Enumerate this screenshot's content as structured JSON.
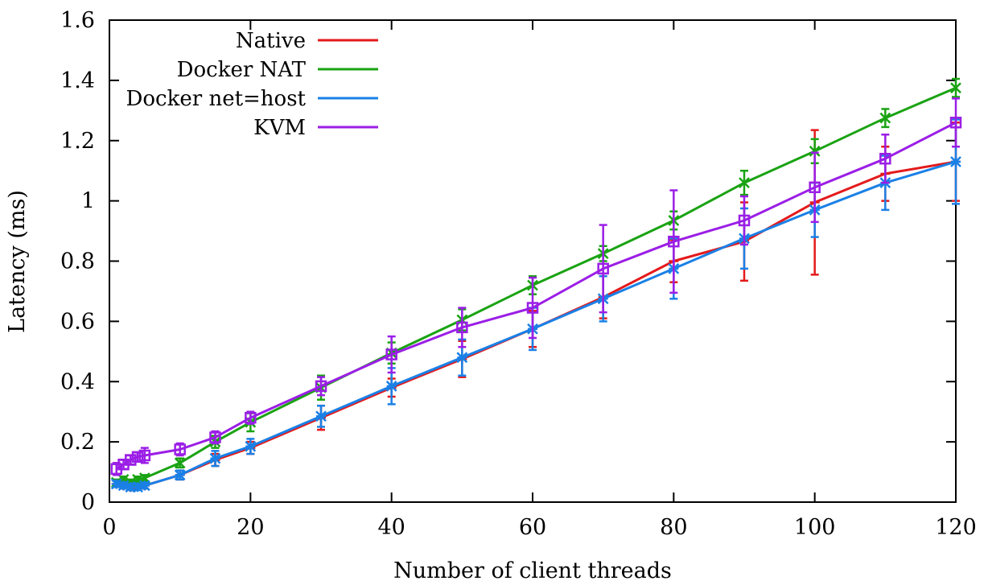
{
  "chart_data": {
    "type": "line",
    "title": "",
    "xlabel": "Number of client threads",
    "ylabel": "Latency (ms)",
    "xlim": [
      0,
      120
    ],
    "ylim": [
      0,
      1.6
    ],
    "xticks": [
      0,
      20,
      40,
      60,
      80,
      100,
      120
    ],
    "yticks": [
      0,
      0.2,
      0.4,
      0.6,
      0.8,
      1,
      1.2,
      1.4,
      1.6
    ],
    "xtick_labels": [
      "0",
      "20",
      "40",
      "60",
      "80",
      "100",
      "120"
    ],
    "ytick_labels": [
      "0",
      "0.2",
      "0.4",
      "0.6",
      "0.8",
      "1",
      "1.2",
      "1.4",
      "1.6"
    ],
    "grid": false,
    "legend_position": "top-left",
    "x": [
      1,
      2,
      3,
      4,
      5,
      10,
      15,
      20,
      30,
      40,
      50,
      60,
      70,
      80,
      90,
      100,
      110,
      120
    ],
    "series": [
      {
        "name": "Native",
        "color": "#e41a1c",
        "marker": "plus",
        "values": [
          0.06,
          0.055,
          0.05,
          0.055,
          0.055,
          0.09,
          0.14,
          0.18,
          0.28,
          0.38,
          0.475,
          0.575,
          0.68,
          0.8,
          0.865,
          0.995,
          1.09,
          1.13
        ],
        "error": [
          0.01,
          0.01,
          0.01,
          0.01,
          0.01,
          0.015,
          0.02,
          0.02,
          0.04,
          0.03,
          0.06,
          0.06,
          0.07,
          0.07,
          0.13,
          0.24,
          0.09,
          0.13
        ]
      },
      {
        "name": "Docker NAT",
        "color": "#1aa313",
        "marker": "x",
        "values": [
          0.065,
          0.075,
          0.065,
          0.075,
          0.08,
          0.13,
          0.2,
          0.265,
          0.38,
          0.495,
          0.605,
          0.72,
          0.825,
          0.935,
          1.06,
          1.165,
          1.275,
          1.375
        ],
        "error": [
          0.01,
          0.01,
          0.01,
          0.01,
          0.01,
          0.015,
          0.02,
          0.03,
          0.04,
          0.035,
          0.035,
          0.03,
          0.025,
          0.03,
          0.04,
          0.04,
          0.03,
          0.03
        ]
      },
      {
        "name": "Docker net=host",
        "color": "#1a80e6",
        "marker": "star",
        "values": [
          0.06,
          0.055,
          0.05,
          0.05,
          0.055,
          0.09,
          0.145,
          0.185,
          0.285,
          0.385,
          0.48,
          0.575,
          0.675,
          0.775,
          0.875,
          0.97,
          1.06,
          1.13
        ],
        "error": [
          0.01,
          0.01,
          0.01,
          0.01,
          0.01,
          0.015,
          0.025,
          0.025,
          0.035,
          0.06,
          0.06,
          0.07,
          0.075,
          0.1,
          0.1,
          0.09,
          0.09,
          0.14
        ]
      },
      {
        "name": "KVM",
        "color": "#9b1ee6",
        "marker": "square",
        "values": [
          0.11,
          0.125,
          0.14,
          0.15,
          0.155,
          0.175,
          0.215,
          0.28,
          0.385,
          0.49,
          0.58,
          0.645,
          0.775,
          0.865,
          0.935,
          1.045,
          1.14,
          1.26
        ],
        "error": [
          0.02,
          0.015,
          0.015,
          0.015,
          0.025,
          0.02,
          0.02,
          0.02,
          0.03,
          0.06,
          0.065,
          0.1,
          0.145,
          0.17,
          0.08,
          0.115,
          0.08,
          0.08
        ]
      }
    ]
  }
}
